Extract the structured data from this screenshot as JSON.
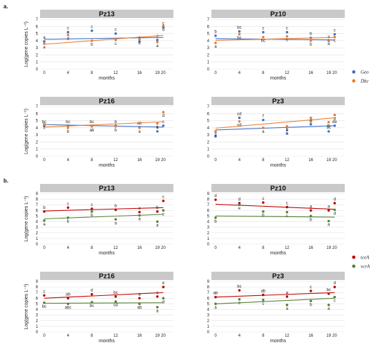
{
  "section_labels": [
    "a.",
    "b."
  ],
  "chart_data": [
    {
      "type": "scatter",
      "group": "a",
      "title": "Pz13",
      "xlabel": "months",
      "ylabel": "Log(gene copies L⁻¹)",
      "x": [
        0,
        4,
        8,
        12,
        16,
        19,
        20
      ],
      "ylim": [
        0,
        7
      ],
      "yticks": [
        0,
        1,
        2,
        3,
        4,
        5,
        6,
        7
      ],
      "grid": "horizontal",
      "series": [
        {
          "name": "Geo",
          "color": "#4472C4",
          "values": [
            3.9,
            5.2,
            5.4,
            5.0,
            3.9,
            4.1,
            5.9
          ],
          "letters": [
            "a",
            "c",
            "c",
            "c",
            "a",
            "c",
            "c"
          ],
          "trend": [
            4.2,
            4.45
          ]
        },
        {
          "name": "Dhc",
          "color": "#ED7D31",
          "values": [
            3.6,
            4.8,
            4.0,
            4.1,
            4.2,
            3.8,
            6.1
          ],
          "letters": [
            "a",
            "d",
            "b",
            "c",
            "b",
            "a",
            "d"
          ],
          "trend": [
            3.5,
            4.75
          ]
        }
      ]
    },
    {
      "type": "scatter",
      "group": "a",
      "title": "Pz10",
      "xlabel": "months",
      "ylabel": "",
      "x": [
        0,
        4,
        8,
        12,
        16,
        19,
        20
      ],
      "ylim": [
        0,
        7
      ],
      "yticks": [
        0,
        1,
        2,
        3,
        4,
        5,
        6,
        7
      ],
      "grid": "horizontal",
      "series": [
        {
          "name": "Geo",
          "color": "#4472C4",
          "values": [
            4.7,
            5.3,
            5.2,
            5.2,
            4.4,
            4.0,
            4.9
          ],
          "letters": [
            "b",
            "bc",
            "c",
            "c",
            "b",
            "a",
            "c"
          ],
          "trend": [
            4.3,
            4.1
          ]
        },
        {
          "name": "Dhc",
          "color": "#ED7D31",
          "values": [
            3.7,
            4.9,
            4.5,
            4.6,
            4.0,
            4.1,
            4.5
          ],
          "letters": [
            "a",
            "bc",
            "bc",
            "c",
            "b",
            "a",
            "c"
          ],
          "trend": [
            4.05,
            4.45
          ]
        }
      ]
    },
    {
      "type": "scatter",
      "group": "a",
      "title": "Pz16",
      "xlabel": "months",
      "ylabel": "Log(gene copies L⁻¹)",
      "x": [
        0,
        4,
        8,
        12,
        16,
        19,
        20
      ],
      "ylim": [
        0,
        7
      ],
      "yticks": [
        0,
        1,
        2,
        3,
        4,
        5,
        6,
        7
      ],
      "grid": "horizontal",
      "series": [
        {
          "name": "Geo",
          "color": "#4472C4",
          "values": [
            4.3,
            4.3,
            4.3,
            4.3,
            4.1,
            3.5,
            4.3
          ],
          "letters": [
            "bc",
            "bc",
            "bc",
            "b",
            "ab",
            "a",
            "c"
          ],
          "trend": [
            4.45,
            4.1
          ]
        },
        {
          "name": "Dhc",
          "color": "#ED7D31",
          "values": [
            4.5,
            4.0,
            4.2,
            4.2,
            4.0,
            4.6,
            6.2
          ],
          "letters": [
            "c",
            "b",
            "ab",
            "b",
            "a",
            "c",
            "d"
          ],
          "trend": [
            4.1,
            4.85
          ]
        }
      ]
    },
    {
      "type": "scatter",
      "group": "a",
      "title": "Pz3",
      "xlabel": "months",
      "ylabel": "",
      "x": [
        0,
        4,
        8,
        12,
        16,
        19,
        20
      ],
      "ylim": [
        0,
        7
      ],
      "yticks": [
        0,
        1,
        2,
        3,
        4,
        5,
        6,
        7
      ],
      "grid": "horizontal",
      "series": [
        {
          "name": "Geo",
          "color": "#4472C4",
          "values": [
            2.8,
            5.4,
            5.1,
            3.2,
            4.5,
            3.5,
            4.3
          ],
          "letters": [
            "a",
            "cd",
            "f",
            "b",
            "d",
            "bc",
            "de"
          ],
          "trend": [
            3.7,
            4.3
          ]
        },
        {
          "name": "Dhc",
          "color": "#ED7D31",
          "values": [
            3.5,
            4.9,
            4.0,
            4.2,
            5.4,
            4.8,
            5.8
          ],
          "letters": [
            "a",
            "cd",
            "a",
            "a",
            "d",
            "b",
            "d"
          ],
          "trend": [
            3.95,
            5.4
          ]
        }
      ]
    },
    {
      "type": "scatter",
      "group": "b",
      "title": "Pz13",
      "xlabel": "months",
      "ylabel": "Log(gene copies L⁻¹)",
      "x": [
        0,
        4,
        8,
        12,
        16,
        19,
        20
      ],
      "ylim": [
        0,
        9
      ],
      "yticks": [
        0,
        1,
        2,
        3,
        4,
        5,
        6,
        7,
        8,
        9
      ],
      "grid": "horizontal",
      "series": [
        {
          "name": "tceA",
          "color": "#C00000",
          "values": [
            5.8,
            6.5,
            6.3,
            6.1,
            5.7,
            5.8,
            7.7
          ],
          "letters": [
            "b",
            "c",
            "c",
            "b",
            "a",
            "b",
            "c"
          ],
          "trend": [
            5.9,
            6.5
          ]
        },
        {
          "name": "vcrA",
          "color": "#548235",
          "values": [
            4.2,
            4.7,
            5.8,
            4.4,
            5.1,
            4.0,
            6.0
          ],
          "letters": [
            "a",
            "b",
            "b",
            "a",
            "a",
            "a",
            "c"
          ],
          "trend": [
            4.5,
            5.3
          ]
        }
      ]
    },
    {
      "type": "scatter",
      "group": "b",
      "title": "Pz10",
      "xlabel": "months",
      "ylabel": "",
      "x": [
        0,
        4,
        8,
        12,
        16,
        19,
        20
      ],
      "ylim": [
        0,
        9
      ],
      "yticks": [
        0,
        1,
        2,
        3,
        4,
        5,
        6,
        7,
        8,
        9
      ],
      "grid": "horizontal",
      "series": [
        {
          "name": "tceA",
          "color": "#C00000",
          "values": [
            7.9,
            7.3,
            7.4,
            6.6,
            6.0,
            6.0,
            7.3
          ],
          "letters": [
            "d",
            "d",
            "c",
            "c",
            "a",
            "a",
            "d"
          ],
          "trend": [
            7.1,
            6.2
          ]
        },
        {
          "name": "vcrA",
          "color": "#548235",
          "values": [
            4.7,
            7.0,
            5.8,
            5.7,
            5.0,
            4.1,
            6.1
          ],
          "letters": [
            "b",
            "e",
            "b",
            "c",
            "b",
            "a",
            "d"
          ],
          "trend": [
            5.0,
            4.8
          ]
        }
      ]
    },
    {
      "type": "scatter",
      "group": "b",
      "title": "Pz16",
      "xlabel": "months",
      "ylabel": "Log(gene copies L⁻¹)",
      "x": [
        0,
        4,
        8,
        12,
        16,
        19,
        20
      ],
      "ylim": [
        0,
        9
      ],
      "yticks": [
        0,
        1,
        2,
        3,
        4,
        5,
        6,
        7,
        8,
        9
      ],
      "grid": "horizontal",
      "series": [
        {
          "name": "tceA",
          "color": "#C00000",
          "values": [
            6.5,
            6.0,
            6.7,
            6.3,
            6.0,
            6.3,
            8.0
          ],
          "letters": [
            "c",
            "ab",
            "d",
            "bc",
            "a",
            "c",
            "e"
          ],
          "trend": [
            6.0,
            7.0
          ]
        },
        {
          "name": "vcrA",
          "color": "#548235",
          "values": [
            5.2,
            5.0,
            5.3,
            5.4,
            5.0,
            4.4,
            6.0
          ],
          "letters": [
            "bc",
            "abc",
            "bc",
            "cd",
            "ab",
            "a",
            "d"
          ],
          "trend": [
            5.1,
            5.2
          ]
        }
      ]
    },
    {
      "type": "scatter",
      "group": "b",
      "title": "Pz3",
      "xlabel": "months",
      "ylabel": "",
      "x": [
        0,
        4,
        8,
        12,
        16,
        19,
        20
      ],
      "ylim": [
        0,
        9
      ],
      "yticks": [
        0,
        1,
        2,
        3,
        4,
        5,
        6,
        7,
        8,
        9
      ],
      "grid": "horizontal",
      "series": [
        {
          "name": "tceA",
          "color": "#C00000",
          "values": [
            6.2,
            7.4,
            6.6,
            6.3,
            7.3,
            6.8,
            8.0
          ],
          "letters": [
            "ab",
            "bc",
            "ab",
            "a",
            "c",
            "bc",
            "d"
          ],
          "trend": [
            6.2,
            7.0
          ]
        },
        {
          "name": "vcrA",
          "color": "#548235",
          "values": [
            5.0,
            5.8,
            5.7,
            4.8,
            5.5,
            4.8,
            6.2
          ],
          "letters": [
            "a",
            "c",
            "c",
            "a",
            "b",
            "a",
            "c"
          ],
          "trend": [
            5.0,
            6.0
          ]
        }
      ]
    }
  ],
  "legends": [
    {
      "group": "a",
      "entries": [
        {
          "label": "Geo",
          "color": "#4472C4"
        },
        {
          "label": "Dhc",
          "color": "#ED7D31"
        }
      ]
    },
    {
      "group": "b",
      "entries": [
        {
          "label": "tceA",
          "color": "#C00000"
        },
        {
          "label": "vcrA",
          "color": "#548235"
        }
      ]
    }
  ]
}
